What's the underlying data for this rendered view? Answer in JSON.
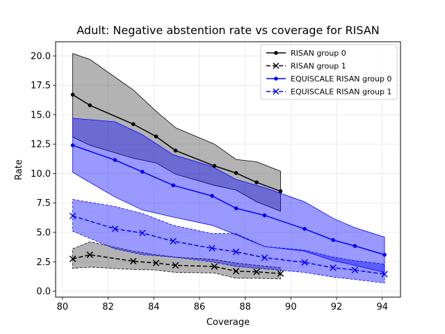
{
  "chart_data": {
    "type": "line",
    "title": "Adult: Negative abstention rate vs coverage for RISAN",
    "xlabel": "Coverage",
    "ylabel": "Rate",
    "xlim": [
      79.7,
      94.8
    ],
    "ylim": [
      -0.5,
      21.2
    ],
    "xticks": [
      80,
      82,
      84,
      86,
      88,
      90,
      92,
      94
    ],
    "yticks": [
      0.0,
      2.5,
      5.0,
      7.5,
      10.0,
      12.5,
      15.0,
      17.5,
      20.0
    ],
    "xtick_labels": [
      "80",
      "82",
      "84",
      "86",
      "88",
      "90",
      "92",
      "94"
    ],
    "ytick_labels": [
      "0.0",
      "2.5",
      "5.0",
      "7.5",
      "10.0",
      "12.5",
      "15.0",
      "17.5",
      "20.0"
    ],
    "grid": true,
    "legend_position": "top-right",
    "series": [
      {
        "name": "RISAN group 0",
        "color": "#000000",
        "band_color": "#404040",
        "linestyle": "solid",
        "marker": "dot",
        "x": [
          80.45,
          81.2,
          83.1,
          84.1,
          84.95,
          86.65,
          87.6,
          88.5,
          89.55
        ],
        "y": [
          16.7,
          15.8,
          14.2,
          13.15,
          11.95,
          10.65,
          10.05,
          9.25,
          8.5
        ],
        "upper": [
          20.2,
          19.7,
          17.1,
          15.3,
          13.9,
          12.5,
          11.2,
          11.0,
          10.2
        ],
        "lower": [
          13.1,
          12.4,
          11.3,
          10.9,
          9.95,
          9.0,
          8.6,
          7.6,
          6.8
        ]
      },
      {
        "name": "RISAN group 1",
        "color": "#000000",
        "band_color": "#404040",
        "linestyle": "dashed",
        "marker": "x",
        "x": [
          80.45,
          81.2,
          83.1,
          84.1,
          84.95,
          86.65,
          87.6,
          88.5,
          89.55
        ],
        "y": [
          2.75,
          3.1,
          2.55,
          2.4,
          2.2,
          2.1,
          1.7,
          1.65,
          1.5
        ],
        "upper": [
          3.6,
          4.2,
          3.4,
          3.1,
          2.9,
          2.7,
          2.4,
          2.2,
          2.0
        ],
        "lower": [
          1.95,
          2.05,
          1.85,
          1.8,
          1.6,
          1.55,
          1.1,
          1.1,
          1.05
        ]
      },
      {
        "name": "EQUISCALE RISAN group 0",
        "color": "#0000ff",
        "band_color": "#0000ff",
        "linestyle": "solid",
        "marker": "dot",
        "x": [
          80.45,
          82.3,
          83.5,
          84.85,
          86.55,
          87.6,
          88.85,
          90.6,
          91.85,
          92.8,
          94.1
        ],
        "y": [
          12.4,
          11.15,
          10.15,
          9.0,
          8.1,
          7.05,
          6.45,
          5.3,
          4.35,
          3.85,
          3.1
        ],
        "upper": [
          14.7,
          14.4,
          13.3,
          11.6,
          10.6,
          9.5,
          8.8,
          7.6,
          6.2,
          5.4,
          4.6
        ],
        "lower": [
          10.1,
          8.0,
          6.9,
          6.3,
          5.6,
          4.8,
          3.8,
          3.4,
          2.6,
          2.2,
          1.6
        ]
      },
      {
        "name": "EQUISCALE RISAN group 1",
        "color": "#0000ff",
        "band_color": "#0000ff",
        "linestyle": "dashed",
        "marker": "x",
        "x": [
          80.45,
          82.3,
          83.5,
          84.85,
          86.55,
          87.6,
          88.85,
          90.6,
          91.85,
          92.8,
          94.1
        ],
        "y": [
          6.4,
          5.3,
          4.95,
          4.25,
          3.65,
          3.35,
          2.85,
          2.45,
          2.0,
          1.8,
          1.45
        ],
        "upper": [
          7.8,
          7.2,
          6.6,
          5.6,
          4.9,
          4.9,
          3.8,
          3.5,
          2.9,
          2.6,
          2.3
        ],
        "lower": [
          5.1,
          3.6,
          3.1,
          2.9,
          2.5,
          2.1,
          1.9,
          1.6,
          1.2,
          1.0,
          0.7
        ]
      }
    ]
  }
}
